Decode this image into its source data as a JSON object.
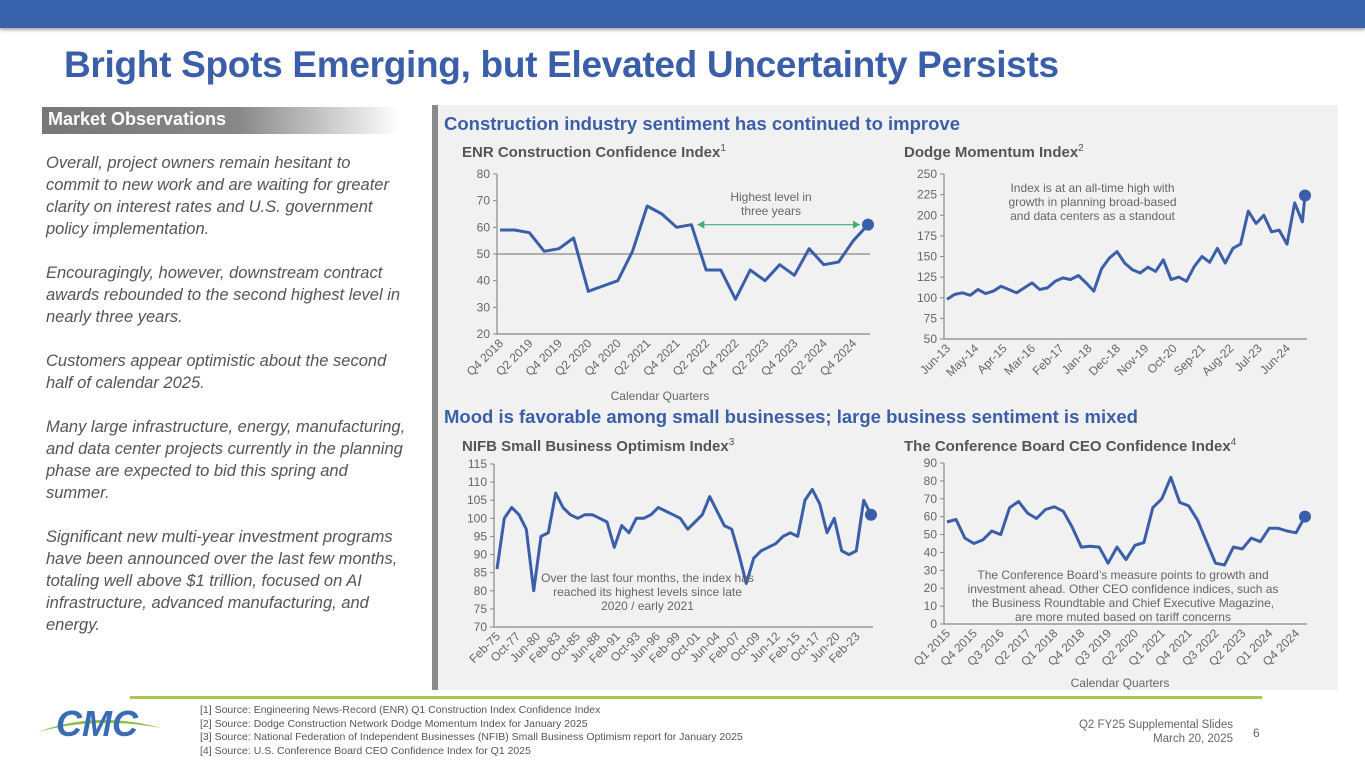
{
  "title": "Bright Spots Emerging, but Elevated Uncertainty Persists",
  "observations": {
    "header": "Market Observations",
    "paragraphs": [
      "Overall, project owners remain hesitant to commit to new work and are waiting for greater clarity on interest rates and U.S. government policy implementation.",
      "Encouragingly, however, downstream contract awards rebounded to the second highest level in nearly three years.",
      "Customers appear optimistic about the second half of calendar 2025.",
      "Many large infrastructure, energy, manufacturing, and data center projects currently in the planning phase are expected to bid this spring and summer.",
      "Significant new multi-year investment programs have been announced over the last few months, totaling well above $1 trillion, focused on AI infrastructure, advanced manufacturing, and energy."
    ]
  },
  "sections": {
    "top": "Construction industry sentiment has continued to improve",
    "bottom": "Mood is favorable among small businesses; large business sentiment is mixed"
  },
  "colors": {
    "line": "#3a5fa8",
    "accent_arrow": "#3fae78",
    "title": "#3a5fa8",
    "topbar": "#3962ad"
  },
  "chart_data": [
    {
      "type": "line",
      "title": "ENR Construction Confidence Index",
      "footnote": "1",
      "xlabel": "Calendar Quarters",
      "ylim": [
        20,
        80
      ],
      "yticks": [
        20,
        30,
        40,
        50,
        60,
        70,
        80
      ],
      "reference_line": 50,
      "tick_labels": [
        "Q4 2018",
        "Q2 2019",
        "Q4 2019",
        "Q2 2020",
        "Q4 2020",
        "Q2 2021",
        "Q4 2021",
        "Q2 2022",
        "Q4 2022",
        "Q2 2023",
        "Q4 2023",
        "Q2 2024",
        "Q4 2024"
      ],
      "values": [
        59,
        59,
        58,
        51,
        52,
        56,
        36,
        38,
        40,
        51,
        68,
        65,
        60,
        61,
        44,
        44,
        33,
        44,
        40,
        46,
        42,
        52,
        46,
        47,
        55,
        61
      ],
      "annotation": "Highest level in three years"
    },
    {
      "type": "line",
      "title": "Dodge Momentum Index",
      "footnote": "2",
      "ylim": [
        50,
        250
      ],
      "yticks": [
        50,
        75,
        100,
        125,
        150,
        175,
        200,
        225,
        250
      ],
      "tick_labels": [
        "Jun-13",
        "May-14",
        "Apr-15",
        "Mar-16",
        "Feb-17",
        "Jan-18",
        "Dec-18",
        "Nov-19",
        "Oct-20",
        "Sep-21",
        "Aug-22",
        "Jul-23",
        "Jun-24"
      ],
      "values": [
        98,
        104,
        106,
        103,
        110,
        105,
        108,
        114,
        110,
        106,
        112,
        118,
        110,
        112,
        120,
        124,
        122,
        127,
        118,
        108,
        135,
        148,
        156,
        142,
        134,
        130,
        137,
        132,
        146,
        122,
        125,
        120,
        138,
        150,
        143,
        160,
        142,
        160,
        165,
        205,
        190,
        200,
        180,
        182,
        165,
        215,
        192,
        224
      ],
      "annotation": "Index is at an all-time high with growth in planning broad-based and data centers as a standout"
    },
    {
      "type": "line",
      "title": "NIFB Small Business Optimism Index",
      "footnote": "3",
      "ylim": [
        70,
        115
      ],
      "yticks": [
        70,
        75,
        80,
        85,
        90,
        95,
        100,
        105,
        110,
        115
      ],
      "tick_labels": [
        "Feb-75",
        "Oct-77",
        "Jun-80",
        "Feb-83",
        "Oct-85",
        "Jun-88",
        "Feb-91",
        "Oct-93",
        "Jun-96",
        "Feb-99",
        "Oct-01",
        "Jun-04",
        "Feb-07",
        "Oct-09",
        "Jun-12",
        "Feb-15",
        "Oct-17",
        "Jun-20",
        "Feb-23"
      ],
      "values": [
        86,
        100,
        103,
        101,
        97,
        80,
        95,
        96,
        107,
        103,
        101,
        100,
        101,
        101,
        100,
        99,
        92,
        98,
        96,
        100,
        100,
        101,
        103,
        102,
        101,
        100,
        97,
        99,
        101,
        106,
        102,
        98,
        97,
        90,
        82,
        89,
        91,
        92,
        93,
        95,
        96,
        95,
        105,
        108,
        104,
        96,
        100,
        91,
        90,
        91,
        105,
        101
      ],
      "annotation": "Over the last four months, the index has reached its highest levels since late 2020 / early 2021"
    },
    {
      "type": "line",
      "title": "The Conference Board CEO Confidence Index",
      "footnote": "4",
      "xlabel": "Calendar Quarters",
      "ylim": [
        0,
        90
      ],
      "yticks": [
        0,
        10,
        20,
        30,
        40,
        50,
        60,
        70,
        80,
        90
      ],
      "tick_labels": [
        "Q1 2015",
        "Q4 2015",
        "Q3 2016",
        "Q2 2017",
        "Q1 2018",
        "Q4 2018",
        "Q3 2019",
        "Q2 2020",
        "Q1 2021",
        "Q4 2021",
        "Q3 2022",
        "Q2 2023",
        "Q1 2024",
        "Q4 2024"
      ],
      "values": [
        57,
        58.5,
        48,
        45,
        47,
        52,
        50,
        65,
        68.5,
        62,
        59,
        64,
        65.5,
        63,
        54,
        43,
        43.5,
        43,
        34,
        43,
        36,
        44,
        45.5,
        65,
        70,
        82,
        68,
        66,
        58,
        46,
        34,
        33,
        43,
        42,
        48,
        46,
        53.5,
        53.5,
        52,
        51,
        60
      ],
      "annotation": "The Conference Board’s measure points to growth and investment ahead.  Other CEO confidence indices, such as the Business Roundtable and Chief Executive Magazine, are more muted based on tariff concerns"
    }
  ],
  "sources": [
    "[1] Source: Engineering News-Record (ENR) Q1 Construction Index Confidence Index",
    "[2] Source: Dodge Construction Network Dodge Momentum Index for January 2025",
    "[3] Source: National Federation of Independent Businesses (NFIB) Small Business Optimism report for January 2025",
    "[4] Source: U.S. Conference Board CEO Confidence Index for Q1 2025"
  ],
  "footer": {
    "deck": "Q2 FY25 Supplemental Slides",
    "date": "March 20, 2025",
    "page": "6",
    "logo_text": "CMC"
  }
}
